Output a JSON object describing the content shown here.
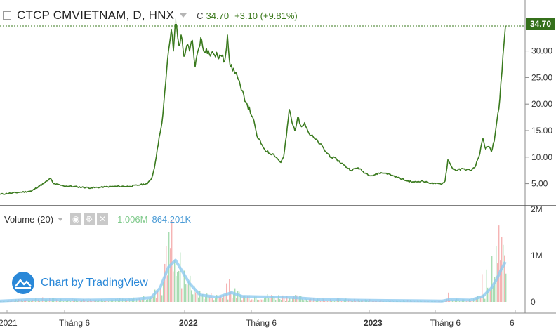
{
  "header": {
    "symbol": "CTCP CMVIETNAM, D, HNX",
    "close_label": "C",
    "close_value": "34.70",
    "change": "+3.10 (+9.81%)"
  },
  "price_badge": "34.70",
  "volume_panel": {
    "name": "Volume (20)",
    "volume_value": "1.006M",
    "ma_value": "864.201K"
  },
  "watermark": "Chart by TradingView",
  "colors": {
    "price_line": "#3a7a1e",
    "volume_up": "#a8dcb2",
    "volume_down": "#f5b4b4",
    "volume_ma": "#8ecbf0",
    "badge": "#35701b"
  },
  "chart_data": [
    {
      "type": "line",
      "title": "CTCP CMVIETNAM, D, HNX",
      "y_axis_position": "right",
      "y_ticks": [
        "5.00",
        "10.00",
        "15.00",
        "20.00",
        "25.00",
        "30.00"
      ],
      "ylim": [
        0.3,
        35.7
      ],
      "x_tick_labels": [
        "2021",
        "Tháng 6",
        "2022",
        "Tháng 6",
        "2023",
        "Tháng 6",
        "6"
      ],
      "last_value": 34.7,
      "series": [
        {
          "points": [
            [
              0,
              3.0
            ],
            [
              15,
              3.2
            ],
            [
              30,
              3.4
            ],
            [
              45,
              3.6
            ],
            [
              55,
              4.5
            ],
            [
              62,
              5.0
            ],
            [
              67,
              5.5
            ],
            [
              72,
              6.0
            ],
            [
              76,
              5.0
            ],
            [
              90,
              4.6
            ],
            [
              110,
              4.4
            ],
            [
              130,
              4.2
            ],
            [
              150,
              4.4
            ],
            [
              170,
              4.5
            ],
            [
              185,
              4.5
            ],
            [
              200,
              4.8
            ],
            [
              210,
              5.0
            ],
            [
              216,
              6.0
            ],
            [
              220,
              8.0
            ],
            [
              224,
              11.5
            ],
            [
              228,
              14.5
            ],
            [
              232,
              18.0
            ],
            [
              236,
              24.0
            ],
            [
              240,
              30.0
            ],
            [
              244,
              34.0
            ],
            [
              247,
              30.0
            ],
            [
              250,
              36.0
            ],
            [
              255,
              31.0
            ],
            [
              258,
              33.0
            ],
            [
              262,
              29.0
            ],
            [
              266,
              31.0
            ],
            [
              270,
              30.0
            ],
            [
              274,
              32.0
            ],
            [
              278,
              27.0
            ],
            [
              282,
              30.0
            ],
            [
              286,
              32.5
            ],
            [
              290,
              30.0
            ],
            [
              294,
              30.5
            ],
            [
              298,
              29.5
            ],
            [
              304,
              29.5
            ],
            [
              310,
              29.0
            ],
            [
              316,
              29.0
            ],
            [
              320,
              28.0
            ],
            [
              324,
              33.0
            ],
            [
              328,
              27.0
            ],
            [
              336,
              26.0
            ],
            [
              344,
              22.5
            ],
            [
              352,
              20.0
            ],
            [
              360,
              17.5
            ],
            [
              366,
              14.0
            ],
            [
              372,
              12.5
            ],
            [
              380,
              11.0
            ],
            [
              390,
              10.5
            ],
            [
              400,
              9.0
            ],
            [
              404,
              10.0
            ],
            [
              408,
              14.0
            ],
            [
              412,
              19.0
            ],
            [
              416,
              16.5
            ],
            [
              420,
              15.0
            ],
            [
              424,
              17.5
            ],
            [
              428,
              16.0
            ],
            [
              434,
              16.5
            ],
            [
              440,
              14.5
            ],
            [
              448,
              13.5
            ],
            [
              456,
              12.5
            ],
            [
              464,
              11.0
            ],
            [
              472,
              10.0
            ],
            [
              480,
              9.5
            ],
            [
              490,
              8.5
            ],
            [
              500,
              7.5
            ],
            [
              510,
              8.0
            ],
            [
              520,
              7.0
            ],
            [
              530,
              6.5
            ],
            [
              540,
              7.0
            ],
            [
              550,
              7.0
            ],
            [
              560,
              6.5
            ],
            [
              570,
              6.0
            ],
            [
              580,
              5.5
            ],
            [
              590,
              5.3
            ],
            [
              600,
              5.5
            ],
            [
              610,
              5.2
            ],
            [
              620,
              5.0
            ],
            [
              630,
              5.0
            ],
            [
              634,
              5.5
            ],
            [
              638,
              9.5
            ],
            [
              644,
              8.0
            ],
            [
              650,
              7.5
            ],
            [
              660,
              7.8
            ],
            [
              670,
              7.5
            ],
            [
              676,
              8.0
            ],
            [
              682,
              10.0
            ],
            [
              688,
              13.5
            ],
            [
              692,
              11.5
            ],
            [
              696,
              12.0
            ],
            [
              700,
              11.0
            ],
            [
              704,
              13.0
            ],
            [
              708,
              17.0
            ],
            [
              712,
              21.0
            ],
            [
              715,
              26.0
            ],
            [
              718,
              31.5
            ],
            [
              720,
              34.7
            ]
          ]
        }
      ]
    },
    {
      "type": "bar",
      "title": "Volume (20)",
      "y_ticks": [
        "0",
        "1M",
        "2M"
      ],
      "ylim": [
        0,
        2000000
      ],
      "volume_spikes": [
        [
          228,
          300000
        ],
        [
          236,
          1200000
        ],
        [
          240,
          1500000
        ],
        [
          244,
          1750000
        ],
        [
          248,
          900000
        ],
        [
          252,
          650000
        ],
        [
          260,
          700000
        ],
        [
          268,
          450000
        ],
        [
          276,
          350000
        ],
        [
          322,
          400000
        ],
        [
          326,
          500000
        ],
        [
          638,
          200000
        ],
        [
          686,
          600000
        ],
        [
          692,
          700000
        ],
        [
          700,
          1000000
        ],
        [
          706,
          1200000
        ],
        [
          710,
          1650000
        ],
        [
          714,
          1400000
        ],
        [
          718,
          1006000
        ]
      ],
      "series": [
        {
          "name": "Volume MA (20)",
          "points": [
            [
              0,
              20000
            ],
            [
              60,
              60000
            ],
            [
              120,
              40000
            ],
            [
              180,
              50000
            ],
            [
              215,
              90000
            ],
            [
              228,
              300000
            ],
            [
              240,
              750000
            ],
            [
              250,
              900000
            ],
            [
              258,
              700000
            ],
            [
              270,
              400000
            ],
            [
              285,
              150000
            ],
            [
              310,
              100000
            ],
            [
              330,
              200000
            ],
            [
              345,
              120000
            ],
            [
              370,
              110000
            ],
            [
              410,
              100000
            ],
            [
              450,
              60000
            ],
            [
              500,
              40000
            ],
            [
              550,
              30000
            ],
            [
              600,
              25000
            ],
            [
              630,
              20000
            ],
            [
              640,
              50000
            ],
            [
              670,
              40000
            ],
            [
              688,
              120000
            ],
            [
              700,
              300000
            ],
            [
              708,
              500000
            ],
            [
              714,
              700000
            ],
            [
              720,
              864201
            ]
          ]
        }
      ]
    }
  ]
}
